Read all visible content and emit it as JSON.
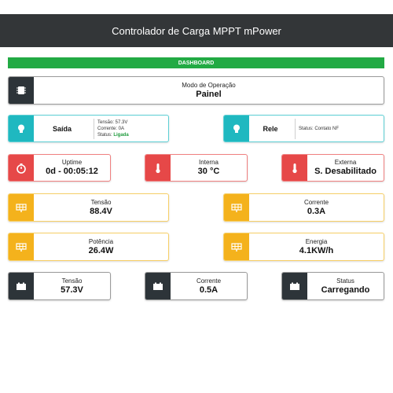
{
  "header": {
    "title": "Controlador de Carga MPPT mPower"
  },
  "dashboard": {
    "label": "DASHBOARD"
  },
  "mode": {
    "label": "Modo de Operação",
    "value": "Painel",
    "icon": "chip-icon"
  },
  "saida": {
    "label": "Saída",
    "tensao": "Tensão: 57.3V",
    "corrente": "Corrente: 0A",
    "status_prefix": "Status: ",
    "status_value": "Ligada",
    "icon": "lightbulb-icon"
  },
  "rele": {
    "label": "Rele",
    "status": "Status: Contato NF",
    "icon": "lightbulb-icon"
  },
  "uptime": {
    "label": "Uptime",
    "value": "0d - 00:05:12",
    "icon": "stopwatch-icon"
  },
  "interna": {
    "label": "Interna",
    "value": "30 °C",
    "icon": "thermometer-icon"
  },
  "externa": {
    "label": "Externa",
    "value": "S. Desabilitado",
    "icon": "thermometer-icon"
  },
  "painel_tensao": {
    "label": "Tensão",
    "value": "88.4V",
    "icon": "solar-panel-icon"
  },
  "painel_corrente": {
    "label": "Corrente",
    "value": "0.3A",
    "icon": "solar-panel-icon"
  },
  "potencia": {
    "label": "Potência",
    "value": "26.4W",
    "icon": "solar-panel-icon"
  },
  "energia": {
    "label": "Energia",
    "value": "4.1KW/h",
    "icon": "solar-panel-icon"
  },
  "bateria_tensao": {
    "label": "Tensão",
    "value": "57.3V",
    "icon": "battery-icon"
  },
  "bateria_corrente": {
    "label": "Corrente",
    "value": "0.5A",
    "icon": "battery-icon"
  },
  "bateria_status": {
    "label": "Status",
    "value": "Carregando",
    "icon": "battery-icon"
  },
  "colors": {
    "header": "#333638",
    "green": "#22aa44",
    "teal": "#1fb8c0",
    "red": "#e64848",
    "yellow": "#f4b21c",
    "dark": "#2d3439"
  }
}
